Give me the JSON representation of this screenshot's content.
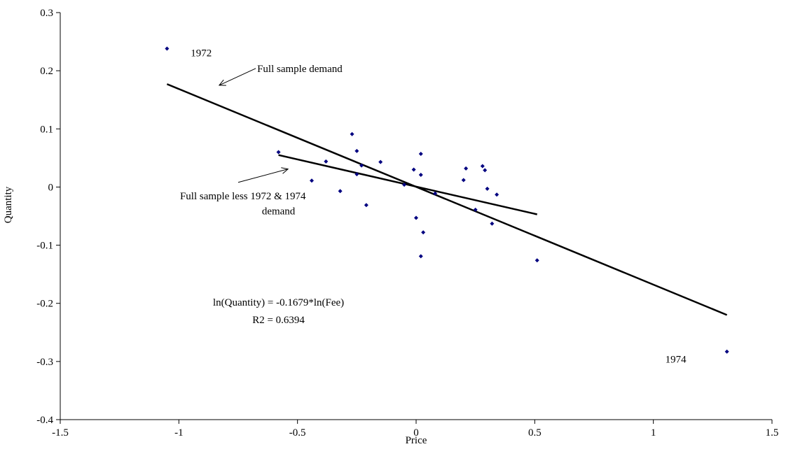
{
  "chart_data": {
    "type": "scatter",
    "xlabel": "Price",
    "ylabel": "Quantity",
    "xlim": [
      -1.5,
      1.5
    ],
    "ylim": [
      -0.4,
      0.3
    ],
    "x_ticks": [
      -1.5,
      -1,
      -0.5,
      0,
      0.5,
      1,
      1.5
    ],
    "x_tick_labels": [
      "-1.5",
      "-1",
      "-0.5",
      "0",
      "0.5",
      "1",
      "1.5"
    ],
    "y_ticks": [
      -0.4,
      -0.3,
      -0.2,
      -0.1,
      0,
      0.1,
      0.2,
      0.3
    ],
    "y_tick_labels": [
      "-0.4",
      "-0.3",
      "-0.2",
      "-0.1",
      "0",
      "0.1",
      "0.2",
      "0.3"
    ],
    "grid": false,
    "point_color": "#000080",
    "points": [
      {
        "x": -1.05,
        "y": 0.238
      },
      {
        "x": -0.58,
        "y": 0.06
      },
      {
        "x": -0.44,
        "y": 0.011
      },
      {
        "x": -0.38,
        "y": 0.044
      },
      {
        "x": -0.32,
        "y": -0.007
      },
      {
        "x": -0.27,
        "y": 0.091
      },
      {
        "x": -0.25,
        "y": 0.062
      },
      {
        "x": -0.25,
        "y": 0.022
      },
      {
        "x": -0.23,
        "y": 0.037
      },
      {
        "x": -0.21,
        "y": -0.031
      },
      {
        "x": -0.15,
        "y": 0.043
      },
      {
        "x": -0.05,
        "y": 0.004
      },
      {
        "x": -0.01,
        "y": 0.03
      },
      {
        "x": 0.0,
        "y": -0.053
      },
      {
        "x": 0.02,
        "y": 0.057
      },
      {
        "x": 0.02,
        "y": 0.021
      },
      {
        "x": 0.02,
        "y": -0.119
      },
      {
        "x": 0.03,
        "y": -0.078
      },
      {
        "x": 0.08,
        "y": -0.011
      },
      {
        "x": 0.2,
        "y": 0.012
      },
      {
        "x": 0.21,
        "y": 0.032
      },
      {
        "x": 0.25,
        "y": -0.039
      },
      {
        "x": 0.28,
        "y": 0.036
      },
      {
        "x": 0.29,
        "y": 0.029
      },
      {
        "x": 0.3,
        "y": -0.003
      },
      {
        "x": 0.32,
        "y": -0.063
      },
      {
        "x": 0.34,
        "y": -0.013
      },
      {
        "x": 0.51,
        "y": -0.126
      },
      {
        "x": 1.31,
        "y": -0.283
      }
    ],
    "lines": [
      {
        "x": [
          -1.05,
          1.31
        ],
        "y": [
          0.177,
          -0.22
        ]
      },
      {
        "x": [
          -0.58,
          0.51
        ],
        "y": [
          0.055,
          -0.047
        ]
      }
    ],
    "annotations": [
      {
        "text": "1972",
        "x": -0.95,
        "y": 0.225
      },
      {
        "text": "Full sample demand",
        "x": -0.67,
        "y": 0.198,
        "arrow_to": {
          "x": -0.83,
          "y": 0.175
        }
      },
      {
        "text": "Full sample less 1972 & 1974",
        "x": -0.73,
        "y": -0.021,
        "arrow_to": {
          "x": -0.54,
          "y": 0.031
        }
      },
      {
        "text": "demand",
        "x": -0.58,
        "y": -0.047
      },
      {
        "text": "ln(Quantity) = -0.1679*ln(Fee)",
        "x": -0.58,
        "y": -0.204
      },
      {
        "text": "R2 = 0.6394",
        "x": -0.58,
        "y": -0.234
      },
      {
        "text": "1974",
        "x": 1.05,
        "y": -0.302
      }
    ]
  }
}
